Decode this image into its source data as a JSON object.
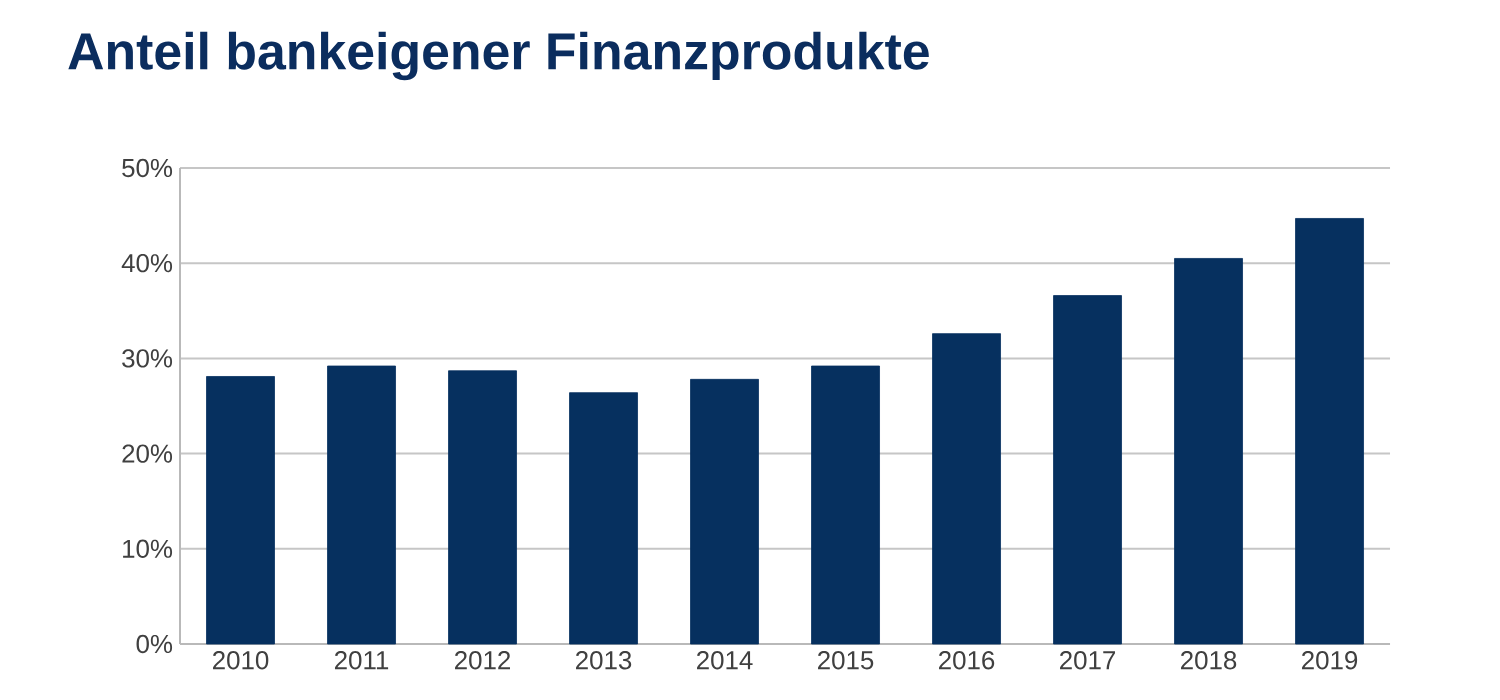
{
  "chart_data": {
    "type": "bar",
    "title": "Anteil bankeigener Finanzprodukte",
    "categories": [
      "2010",
      "2011",
      "2012",
      "2013",
      "2014",
      "2015",
      "2016",
      "2017",
      "2018",
      "2019"
    ],
    "values": [
      28.1,
      29.2,
      28.7,
      26.4,
      27.8,
      29.2,
      32.6,
      36.6,
      40.5,
      44.7
    ],
    "color": "#06305f",
    "ylim": [
      0,
      50
    ],
    "yticks": [
      {
        "value": 0,
        "label": "0%"
      },
      {
        "value": 10,
        "label": "10%"
      },
      {
        "value": 20,
        "label": "20%"
      },
      {
        "value": 30,
        "label": "30%"
      },
      {
        "value": 40,
        "label": "40%"
      },
      {
        "value": 50,
        "label": "50%"
      }
    ],
    "grid": "y"
  }
}
